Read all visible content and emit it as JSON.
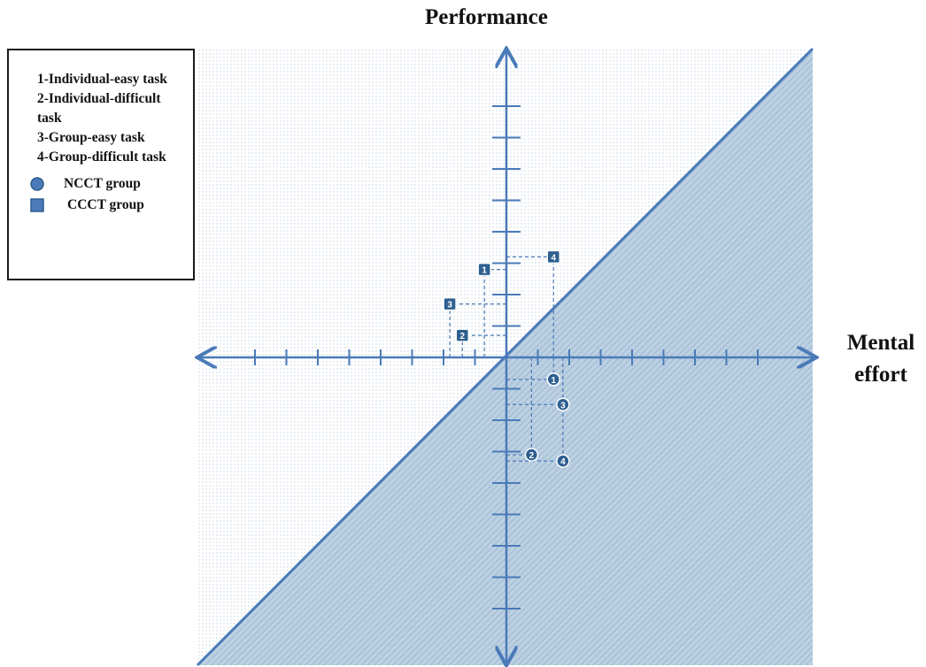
{
  "axes": {
    "y_label": "Performance",
    "x_label_line1": "Mental",
    "x_label_line2": "effort"
  },
  "legend": {
    "tasks": [
      "1-Individual-easy task",
      "2-Individual-difficult task",
      "3-Group-easy task",
      "4-Group-difficult task"
    ],
    "ncct_label": "NCCT group",
    "ccct_label": "CCCT group"
  },
  "colors": {
    "axis": "#4a7ab8",
    "marker_fill": "#2e5f8f",
    "shade": "#a9c3d8",
    "dots": "#c8d4e2"
  },
  "chart_data": {
    "type": "scatter",
    "x_range": [
      -10,
      10
    ],
    "y_range": [
      -10,
      10
    ],
    "x_ticks": [
      -8,
      -7,
      -6,
      -5,
      -4,
      -3,
      -2,
      -1,
      1,
      2,
      3,
      4,
      5,
      6,
      7,
      8
    ],
    "y_ticks": [
      -8,
      -7,
      -6,
      -5,
      -4,
      -3,
      -2,
      -1,
      1,
      2,
      3,
      4,
      5,
      6,
      7,
      8
    ],
    "reference_line": "y = x",
    "series": [
      {
        "name": "NCCT group",
        "marker": "circle",
        "points": [
          {
            "label": "1",
            "x": 1.5,
            "y": -0.7
          },
          {
            "label": "2",
            "x": 0.8,
            "y": -3.1
          },
          {
            "label": "3",
            "x": 1.8,
            "y": -1.5
          },
          {
            "label": "4",
            "x": 1.8,
            "y": -3.3
          }
        ]
      },
      {
        "name": "CCCT group",
        "marker": "square",
        "points": [
          {
            "label": "1",
            "x": -0.7,
            "y": 2.8
          },
          {
            "label": "2",
            "x": -1.4,
            "y": 0.7
          },
          {
            "label": "3",
            "x": -1.8,
            "y": 1.7
          },
          {
            "label": "4",
            "x": 1.5,
            "y": 3.2
          }
        ]
      }
    ]
  }
}
